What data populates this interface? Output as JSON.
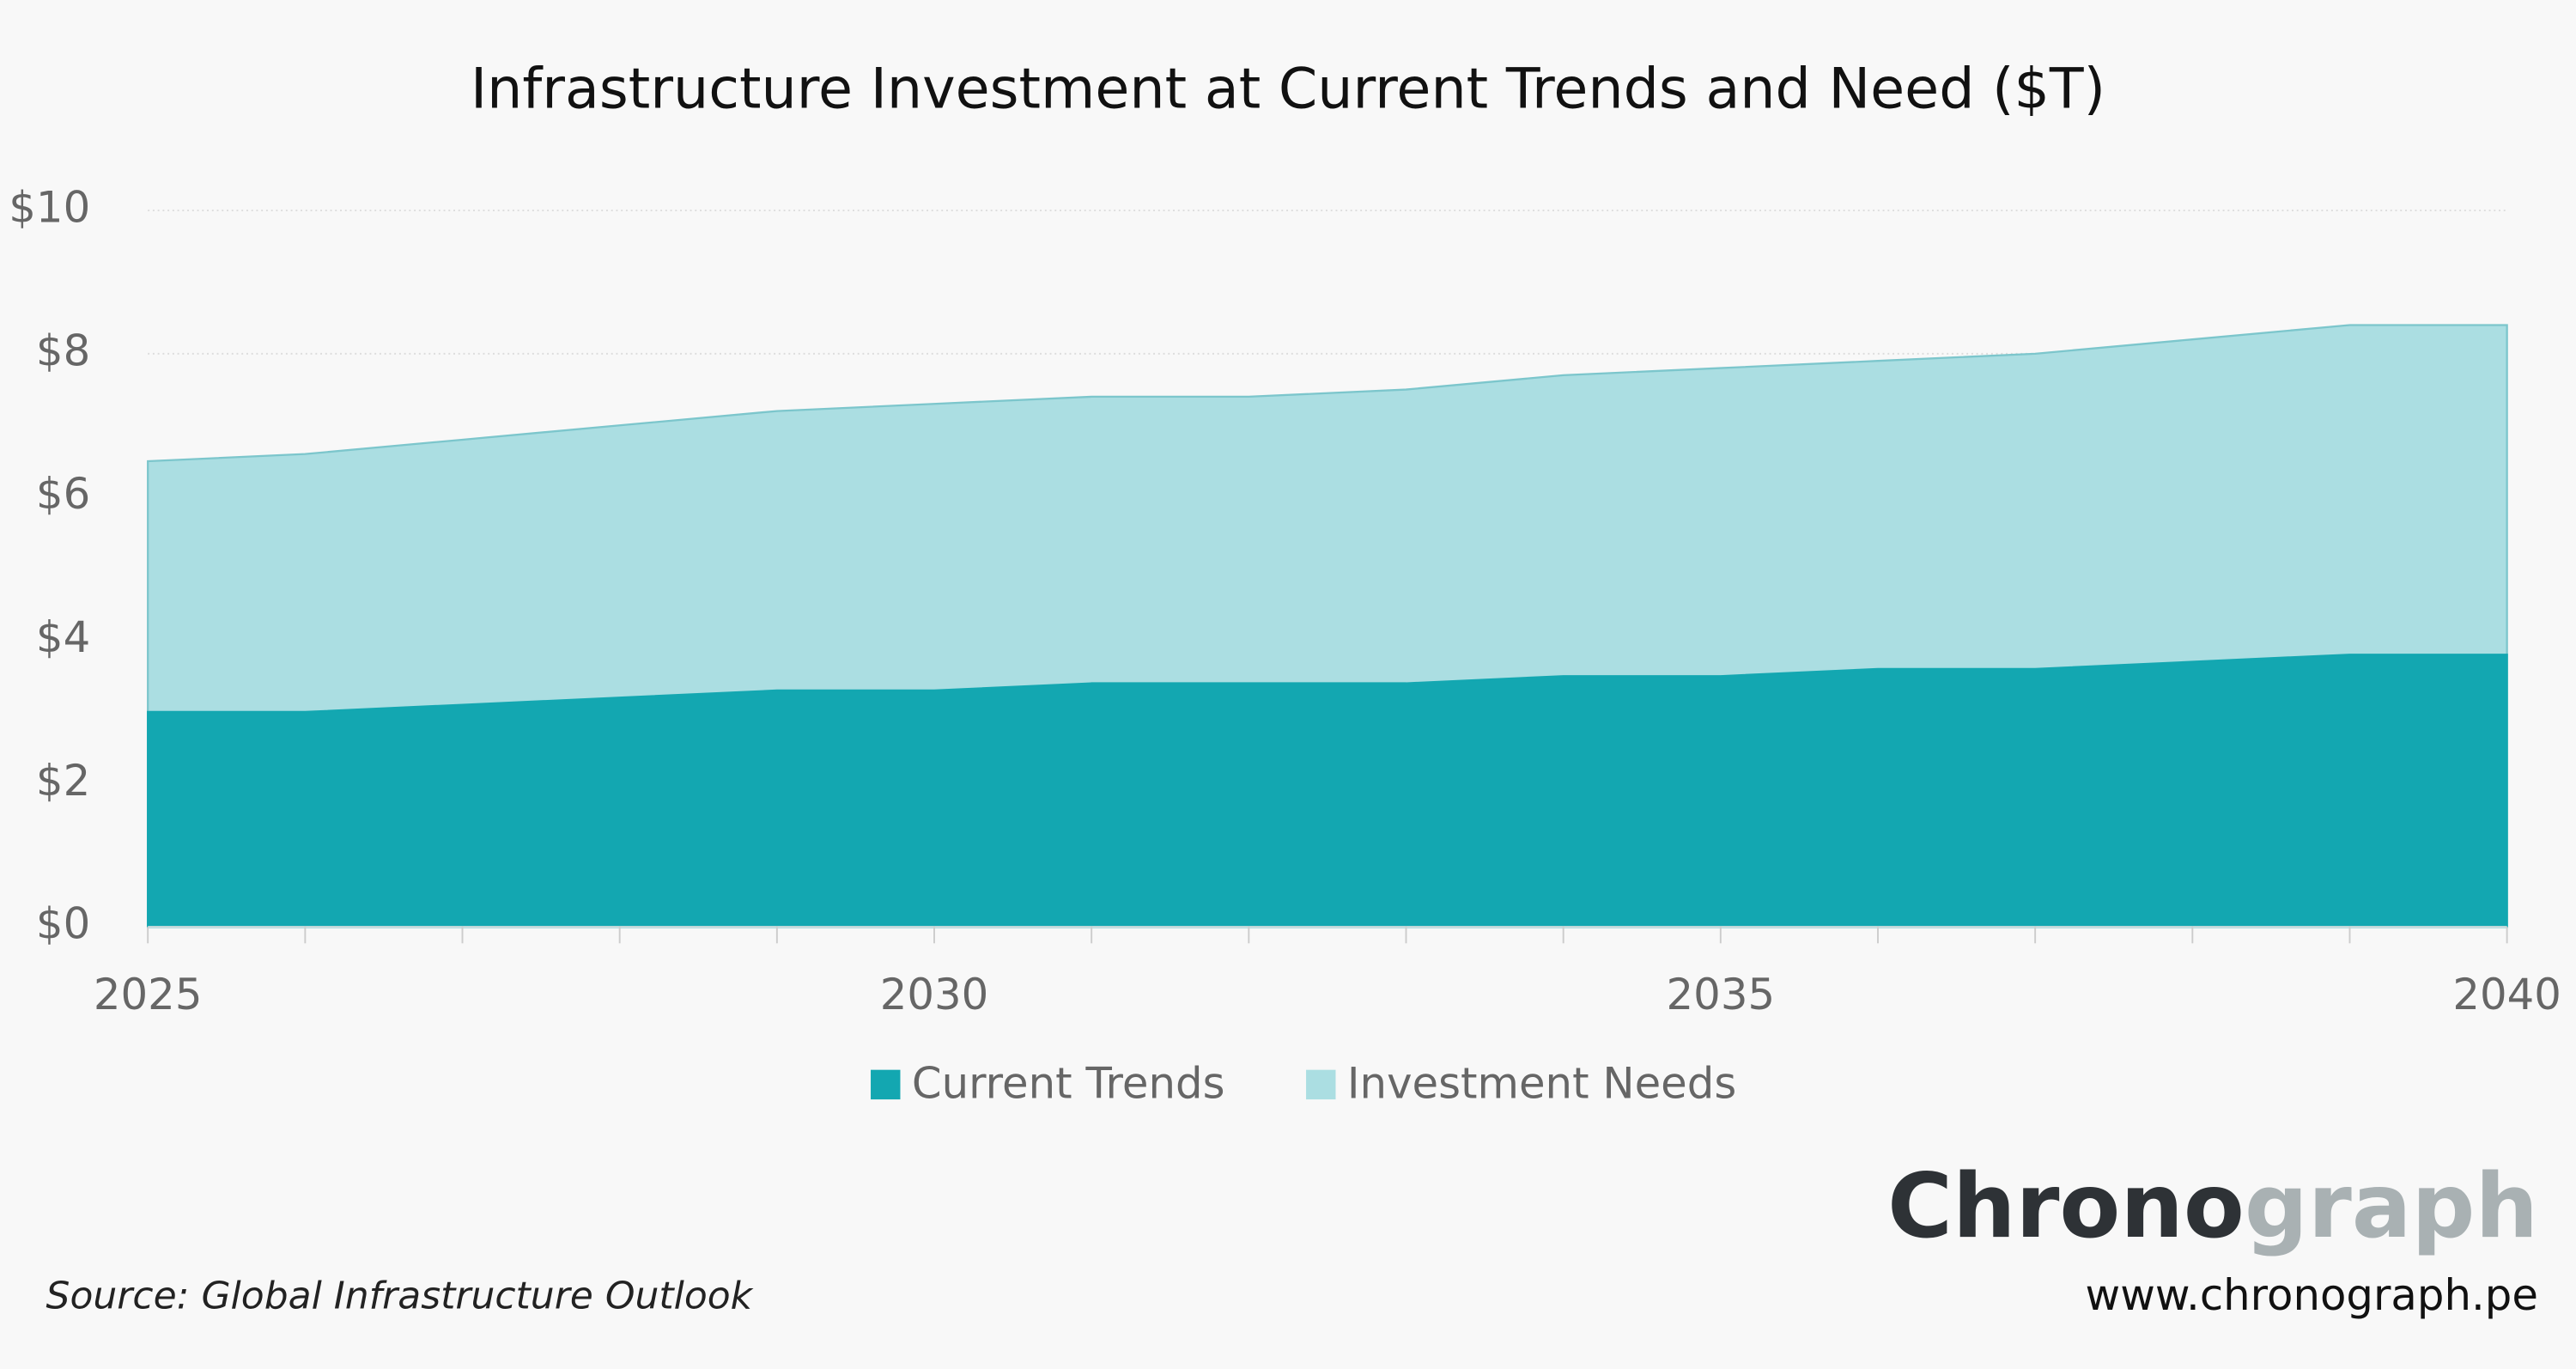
{
  "chart_data": {
    "type": "area",
    "title": "Infrastructure Investment at Current Trends and Need ($T)",
    "x": [
      2025,
      2026,
      2027,
      2028,
      2029,
      2030,
      2031,
      2032,
      2033,
      2034,
      2035,
      2036,
      2037,
      2038,
      2039,
      2040
    ],
    "series": [
      {
        "name": "Current Trends",
        "color": "#13a7b1",
        "values": [
          3.0,
          3.0,
          3.1,
          3.2,
          3.3,
          3.3,
          3.4,
          3.4,
          3.4,
          3.5,
          3.5,
          3.6,
          3.6,
          3.7,
          3.8,
          3.8
        ]
      },
      {
        "name": "Investment Needs",
        "color": "#abdee2",
        "values": [
          6.5,
          6.6,
          6.8,
          7.0,
          7.2,
          7.3,
          7.4,
          7.4,
          7.5,
          7.7,
          7.8,
          7.9,
          8.0,
          8.2,
          8.4,
          8.4
        ]
      }
    ],
    "xlim": [
      2025,
      2040
    ],
    "xticks": [
      2025,
      2030,
      2035,
      2040
    ],
    "ylim": [
      0,
      10
    ],
    "yticks": [
      {
        "value": 0,
        "label": "$0"
      },
      {
        "value": 2,
        "label": "$2"
      },
      {
        "value": 4,
        "label": "$4"
      },
      {
        "value": 6,
        "label": "$6"
      },
      {
        "value": 8,
        "label": "$8"
      },
      {
        "value": 10,
        "label": "$10"
      }
    ],
    "grid": true
  },
  "footer": {
    "source": "Source: Global Infrastructure Outlook",
    "brand_dark": "Chrono",
    "brand_light": "graph",
    "website": "www.chronograph.pe"
  }
}
